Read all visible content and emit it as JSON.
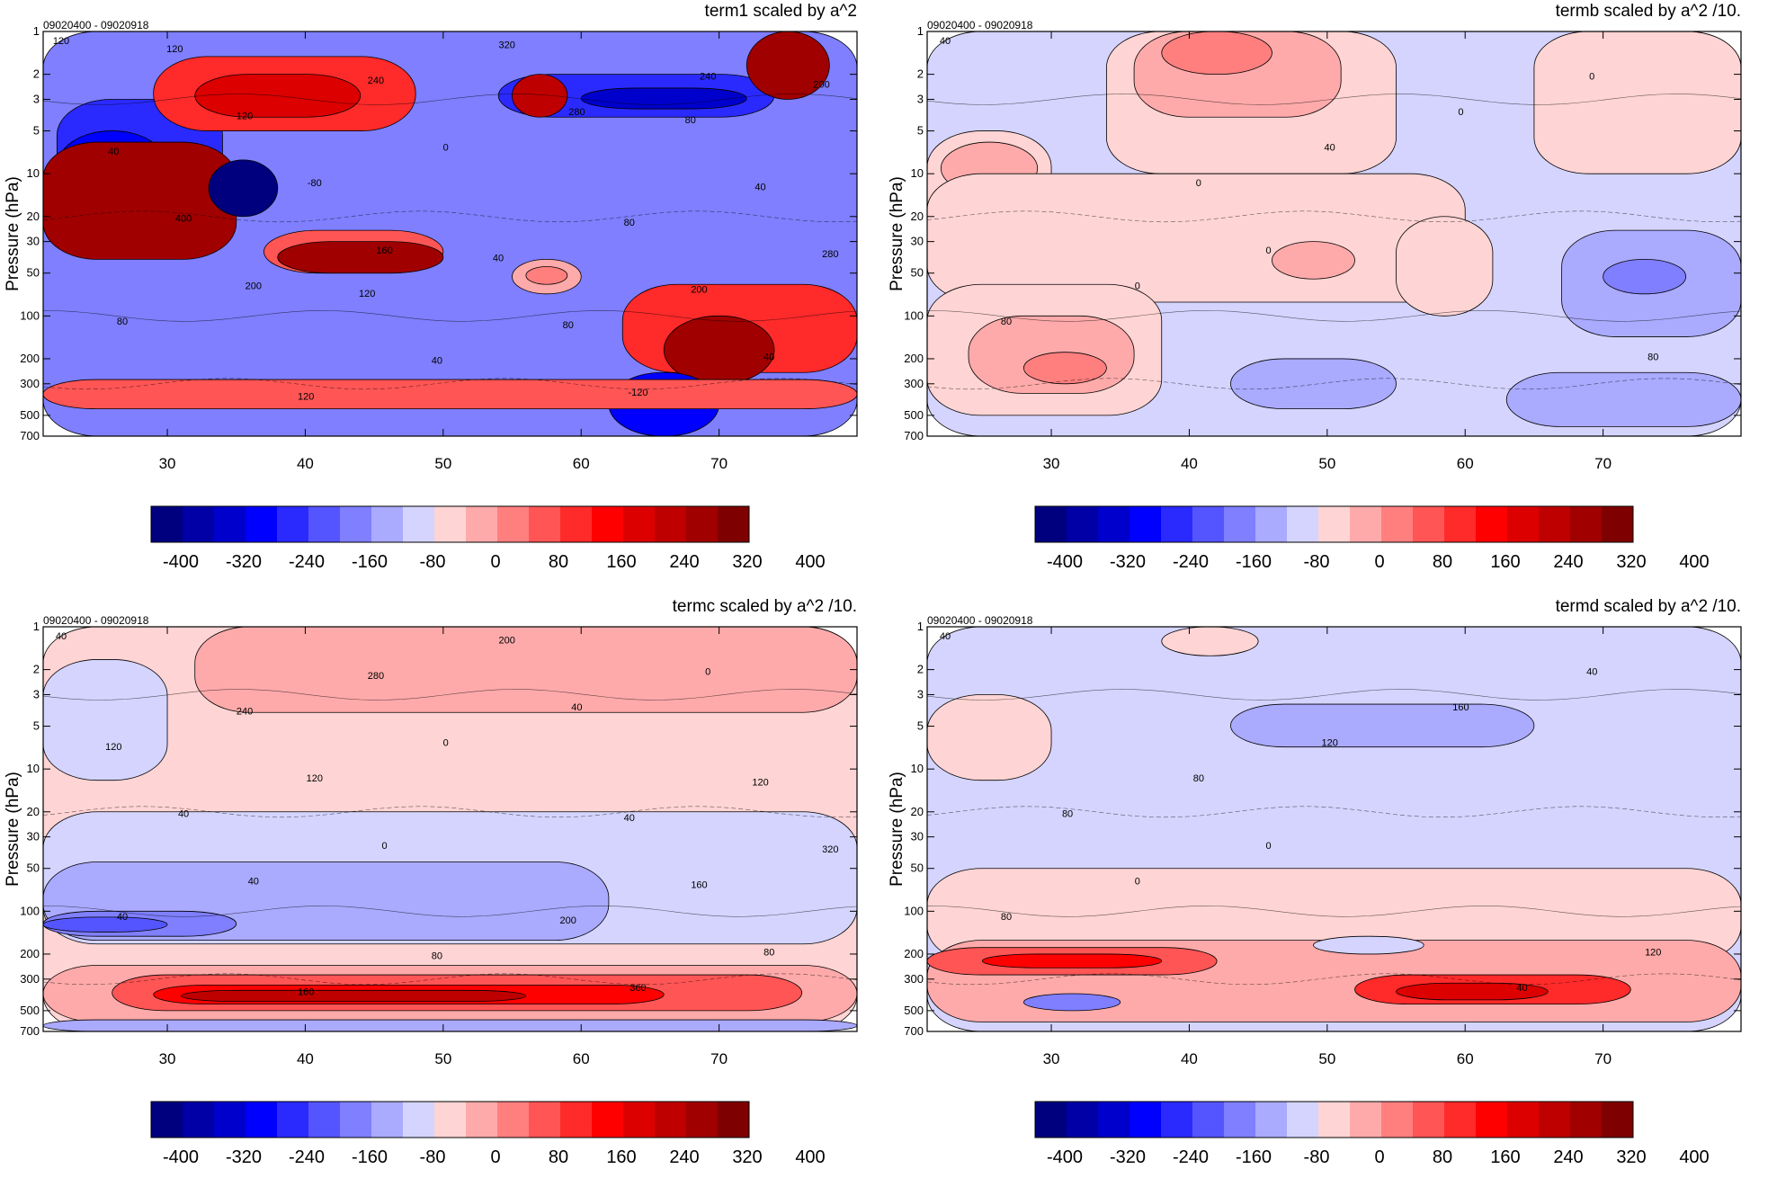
{
  "colorbar": {
    "colors": [
      "#00007f",
      "#0000a6",
      "#0000cc",
      "#0000ff",
      "#2a2aff",
      "#5555ff",
      "#7f7fff",
      "#aaaaff",
      "#d4d4ff",
      "#ffd4d4",
      "#ffaaaa",
      "#ff7f7f",
      "#ff5555",
      "#ff2a2a",
      "#ff0000",
      "#dc0000",
      "#bf0000",
      "#a00000",
      "#7f0000"
    ],
    "labels": [
      "-400",
      "-320",
      "-240",
      "-160",
      "-80",
      "0",
      "80",
      "160",
      "240",
      "320",
      "400"
    ]
  },
  "chart_data": [
    {
      "type": "heatmap",
      "title": "term1 scaled by a^2",
      "subtitle": "09020400 - 09020918",
      "ylabel": "Pressure (hPa)",
      "xlabel": "",
      "x_ticks": [
        "30",
        "40",
        "50",
        "60",
        "70"
      ],
      "y_ticks": [
        "1",
        "2",
        "3",
        "5",
        "10",
        "20",
        "30",
        "50",
        "100",
        "200",
        "300",
        "500",
        "700"
      ],
      "xlim": [
        21,
        80
      ],
      "y_scale": "log",
      "ylim": [
        700,
        1
      ],
      "contour_labels": [
        "120",
        "160",
        "240",
        "200",
        "280",
        "80",
        "0",
        "40",
        "-80",
        "-120",
        "400",
        "320",
        "280",
        "240",
        "200",
        "120",
        "80",
        "40",
        "40",
        "40",
        "120",
        "80",
        "120",
        "40",
        "200",
        "120",
        "80"
      ],
      "regions": [
        {
          "level": 6,
          "x": [
            21,
            80
          ],
          "y": [
            1,
            700
          ]
        },
        {
          "level": 4,
          "x": [
            22,
            34
          ],
          "y": [
            3,
            20
          ]
        },
        {
          "level": 3,
          "x": [
            22,
            30
          ],
          "y": [
            5,
            20
          ]
        },
        {
          "level": 17,
          "x": [
            21,
            35
          ],
          "y": [
            6,
            40
          ]
        },
        {
          "level": 13,
          "x": [
            29,
            48
          ],
          "y": [
            1.5,
            5
          ]
        },
        {
          "level": 15,
          "x": [
            32,
            44
          ],
          "y": [
            2,
            4
          ]
        },
        {
          "level": 0,
          "x": [
            33,
            38
          ],
          "y": [
            8,
            20
          ]
        },
        {
          "level": 12,
          "x": [
            37,
            50
          ],
          "y": [
            25,
            50
          ]
        },
        {
          "level": 17,
          "x": [
            38,
            50
          ],
          "y": [
            30,
            50
          ]
        },
        {
          "level": 4,
          "x": [
            54,
            74
          ],
          "y": [
            2,
            4
          ]
        },
        {
          "level": 2,
          "x": [
            60,
            72
          ],
          "y": [
            2.5,
            3.5
          ]
        },
        {
          "level": 17,
          "x": [
            72,
            78
          ],
          "y": [
            1,
            3
          ]
        },
        {
          "level": 16,
          "x": [
            55,
            59
          ],
          "y": [
            2,
            4
          ]
        },
        {
          "level": 13,
          "x": [
            63,
            80
          ],
          "y": [
            60,
            250
          ]
        },
        {
          "level": 17,
          "x": [
            66,
            74
          ],
          "y": [
            100,
            300
          ]
        },
        {
          "level": 3,
          "x": [
            62,
            70
          ],
          "y": [
            250,
            700
          ]
        },
        {
          "level": 12,
          "x": [
            21,
            80
          ],
          "y": [
            280,
            450
          ]
        },
        {
          "level": 10,
          "x": [
            55,
            60
          ],
          "y": [
            40,
            70
          ]
        },
        {
          "level": 11,
          "x": [
            56,
            59
          ],
          "y": [
            45,
            60
          ]
        }
      ]
    },
    {
      "type": "heatmap",
      "title": "termb scaled by a^2 /10.",
      "subtitle": "09020400 - 09020918",
      "ylabel": "Pressure (hPa)",
      "xlabel": "",
      "x_ticks": [
        "30",
        "40",
        "50",
        "60",
        "70"
      ],
      "y_ticks": [
        "1",
        "2",
        "3",
        "5",
        "10",
        "20",
        "30",
        "50",
        "100",
        "200",
        "300",
        "500",
        "700"
      ],
      "xlim": [
        21,
        80
      ],
      "y_scale": "log",
      "ylim": [
        700,
        1
      ],
      "contour_labels": [
        "40",
        "0",
        "0",
        "0",
        "0",
        "80",
        "40",
        "80",
        "0"
      ],
      "regions": [
        {
          "level": 8,
          "x": [
            21,
            80
          ],
          "y": [
            1,
            700
          ]
        },
        {
          "level": 9,
          "x": [
            21,
            30
          ],
          "y": [
            5,
            30
          ]
        },
        {
          "level": 10,
          "x": [
            22,
            29
          ],
          "y": [
            6,
            14
          ]
        },
        {
          "level": 9,
          "x": [
            34,
            55
          ],
          "y": [
            1,
            10
          ]
        },
        {
          "level": 10,
          "x": [
            36,
            51
          ],
          "y": [
            1,
            4
          ]
        },
        {
          "level": 11,
          "x": [
            38,
            46
          ],
          "y": [
            1,
            2
          ]
        },
        {
          "level": 9,
          "x": [
            21,
            60
          ],
          "y": [
            10,
            80
          ]
        },
        {
          "level": 10,
          "x": [
            46,
            52
          ],
          "y": [
            30,
            55
          ]
        },
        {
          "level": 9,
          "x": [
            21,
            38
          ],
          "y": [
            60,
            500
          ]
        },
        {
          "level": 10,
          "x": [
            24,
            36
          ],
          "y": [
            100,
            350
          ]
        },
        {
          "level": 11,
          "x": [
            28,
            34
          ],
          "y": [
            180,
            300
          ]
        },
        {
          "level": 9,
          "x": [
            55,
            62
          ],
          "y": [
            20,
            100
          ]
        },
        {
          "level": 9,
          "x": [
            65,
            80
          ],
          "y": [
            1,
            10
          ]
        },
        {
          "level": 7,
          "x": [
            67,
            80
          ],
          "y": [
            25,
            140
          ]
        },
        {
          "level": 6,
          "x": [
            70,
            76
          ],
          "y": [
            40,
            70
          ]
        },
        {
          "level": 7,
          "x": [
            43,
            55
          ],
          "y": [
            200,
            450
          ]
        },
        {
          "level": 7,
          "x": [
            63,
            80
          ],
          "y": [
            250,
            600
          ]
        }
      ]
    },
    {
      "type": "heatmap",
      "title": "termc scaled by a^2 /10.",
      "subtitle": "09020400 - 09020918",
      "ylabel": "Pressure (hPa)",
      "xlabel": "",
      "x_ticks": [
        "30",
        "40",
        "50",
        "60",
        "70"
      ],
      "y_ticks": [
        "1",
        "2",
        "3",
        "5",
        "10",
        "20",
        "30",
        "50",
        "100",
        "200",
        "300",
        "500",
        "700"
      ],
      "xlim": [
        21,
        80
      ],
      "y_scale": "log",
      "ylim": [
        700,
        1
      ],
      "contour_labels": [
        "40",
        "0",
        "0",
        "40",
        "40",
        "40",
        "0",
        "80",
        "120",
        "360",
        "40",
        "200",
        "320",
        "280",
        "160",
        "240",
        "200",
        "120",
        "80",
        "120",
        "160",
        "40"
      ],
      "regions": [
        {
          "level": 9,
          "x": [
            21,
            80
          ],
          "y": [
            1,
            700
          ]
        },
        {
          "level": 10,
          "x": [
            32,
            80
          ],
          "y": [
            1,
            4
          ]
        },
        {
          "level": 8,
          "x": [
            21,
            80
          ],
          "y": [
            20,
            170
          ]
        },
        {
          "level": 8,
          "x": [
            21,
            30
          ],
          "y": [
            1.7,
            12
          ]
        },
        {
          "level": 7,
          "x": [
            21,
            62
          ],
          "y": [
            45,
            160
          ]
        },
        {
          "level": 6,
          "x": [
            21,
            35
          ],
          "y": [
            100,
            150
          ]
        },
        {
          "level": 5,
          "x": [
            21,
            30
          ],
          "y": [
            110,
            140
          ]
        },
        {
          "level": 10,
          "x": [
            21,
            80
          ],
          "y": [
            240,
            600
          ]
        },
        {
          "level": 12,
          "x": [
            26,
            76
          ],
          "y": [
            280,
            500
          ]
        },
        {
          "level": 14,
          "x": [
            29,
            66
          ],
          "y": [
            330,
            450
          ]
        },
        {
          "level": 16,
          "x": [
            31,
            56
          ],
          "y": [
            360,
            430
          ]
        },
        {
          "level": 7,
          "x": [
            21,
            80
          ],
          "y": [
            580,
            700
          ]
        }
      ]
    },
    {
      "type": "heatmap",
      "title": "termd scaled by a^2 /10.",
      "subtitle": "09020400 - 09020918",
      "ylabel": "Pressure (hPa)",
      "xlabel": "",
      "x_ticks": [
        "30",
        "40",
        "50",
        "60",
        "70"
      ],
      "y_ticks": [
        "1",
        "2",
        "3",
        "5",
        "10",
        "20",
        "30",
        "50",
        "100",
        "200",
        "300",
        "500",
        "700"
      ],
      "xlim": [
        21,
        80
      ],
      "y_scale": "log",
      "ylim": [
        700,
        1
      ],
      "contour_labels": [
        "40",
        "0",
        "40",
        "0",
        "160",
        "80",
        "120",
        "120",
        "80",
        "40",
        "80"
      ],
      "regions": [
        {
          "level": 8,
          "x": [
            21,
            80
          ],
          "y": [
            1,
            700
          ]
        },
        {
          "level": 9,
          "x": [
            38,
            45
          ],
          "y": [
            1,
            1.6
          ]
        },
        {
          "level": 9,
          "x": [
            21,
            30
          ],
          "y": [
            3,
            12
          ]
        },
        {
          "level": 7,
          "x": [
            43,
            65
          ],
          "y": [
            3.5,
            7
          ]
        },
        {
          "level": 9,
          "x": [
            21,
            80
          ],
          "y": [
            50,
            230
          ]
        },
        {
          "level": 10,
          "x": [
            21,
            80
          ],
          "y": [
            160,
            600
          ]
        },
        {
          "level": 12,
          "x": [
            21,
            42
          ],
          "y": [
            180,
            280
          ]
        },
        {
          "level": 14,
          "x": [
            25,
            38
          ],
          "y": [
            200,
            250
          ]
        },
        {
          "level": 13,
          "x": [
            52,
            72
          ],
          "y": [
            280,
            450
          ]
        },
        {
          "level": 15,
          "x": [
            55,
            66
          ],
          "y": [
            320,
            420
          ]
        },
        {
          "level": 6,
          "x": [
            28,
            35
          ],
          "y": [
            380,
            500
          ]
        },
        {
          "level": 8,
          "x": [
            49,
            57
          ],
          "y": [
            150,
            200
          ]
        }
      ]
    }
  ]
}
